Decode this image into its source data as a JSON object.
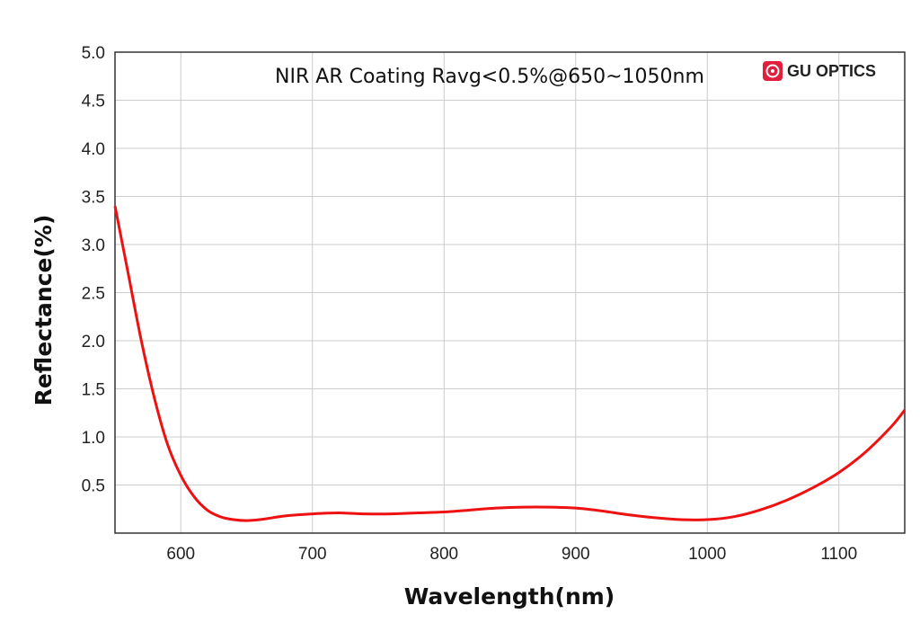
{
  "chart_data": {
    "type": "line",
    "title": "NIR AR Coating Ravg<0.5%@650~1050nm",
    "xlabel": "Wavelength(nm)",
    "ylabel": "Reflectance(%)",
    "xlim": [
      550,
      1150
    ],
    "ylim": [
      0,
      5
    ],
    "x_ticks": [
      600,
      700,
      800,
      900,
      1000,
      1100
    ],
    "y_ticks": [
      0.5,
      1.0,
      1.5,
      2.0,
      2.5,
      3.0,
      3.5,
      4.0,
      4.5,
      5.0
    ],
    "grid": true,
    "series": [
      {
        "color": "#ee1111",
        "x": [
          550,
          560,
          570,
          580,
          590,
          600,
          610,
          620,
          630,
          640,
          650,
          660,
          670,
          680,
          700,
          720,
          740,
          760,
          780,
          800,
          820,
          840,
          860,
          880,
          900,
          920,
          940,
          960,
          980,
          1000,
          1020,
          1040,
          1060,
          1080,
          1100,
          1120,
          1140,
          1150
        ],
        "y": [
          3.4,
          2.7,
          2.0,
          1.4,
          0.92,
          0.6,
          0.38,
          0.24,
          0.17,
          0.14,
          0.13,
          0.14,
          0.16,
          0.18,
          0.2,
          0.21,
          0.2,
          0.2,
          0.21,
          0.22,
          0.24,
          0.26,
          0.27,
          0.27,
          0.26,
          0.23,
          0.19,
          0.16,
          0.14,
          0.14,
          0.17,
          0.24,
          0.34,
          0.47,
          0.63,
          0.84,
          1.11,
          1.28
        ]
      }
    ]
  },
  "brand": {
    "name": "GU OPTICS",
    "logo_color": "#e01f3d",
    "logo_icon": "camera-lens-icon"
  }
}
